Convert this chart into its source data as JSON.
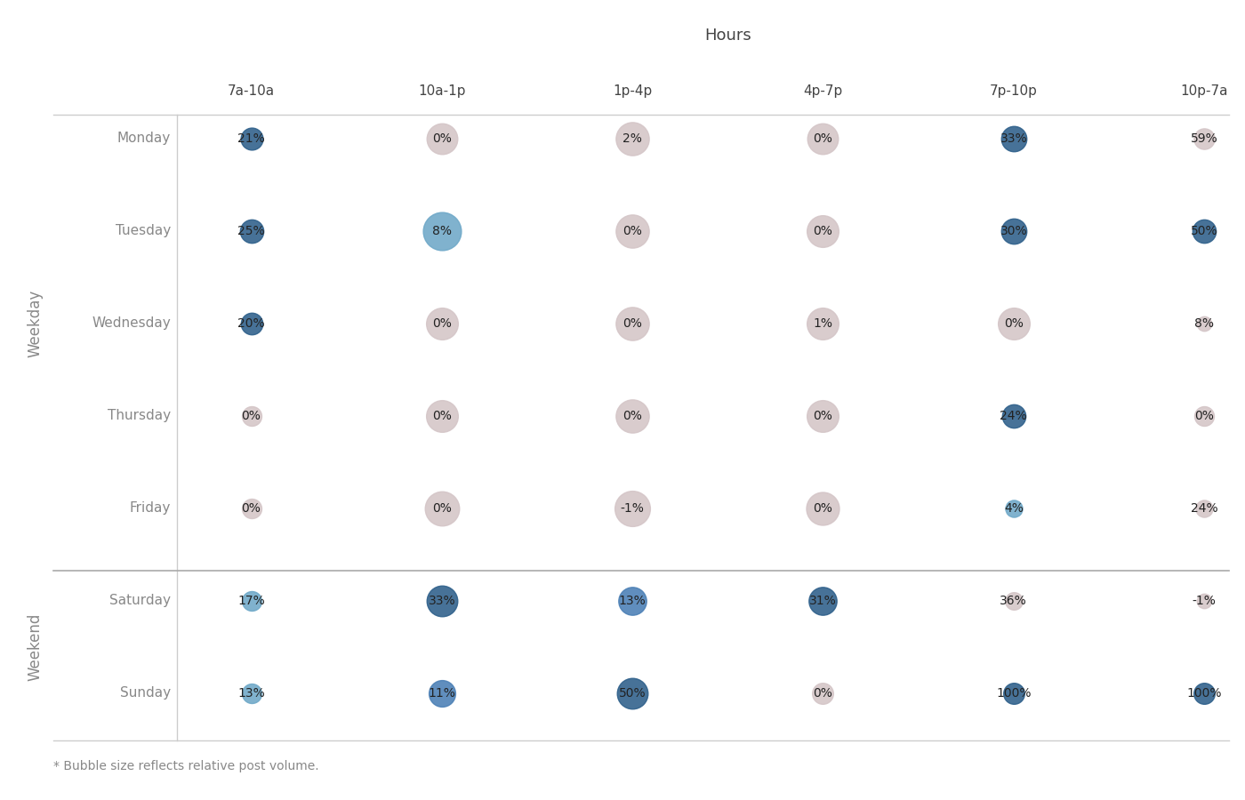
{
  "title": "Hours",
  "hours": [
    "7a-10a",
    "10a-1p",
    "1p-4p",
    "4p-7p",
    "7p-10p",
    "10p-7a"
  ],
  "days": [
    "Monday",
    "Tuesday",
    "Wednesday",
    "Thursday",
    "Friday",
    "Saturday",
    "Sunday"
  ],
  "weekday_label": "Weekday",
  "weekend_label": "Weekend",
  "footnote": "* Bubble size reflects relative post volume.",
  "values": [
    [
      21,
      0,
      2,
      0,
      33,
      59
    ],
    [
      25,
      8,
      0,
      0,
      30,
      50
    ],
    [
      20,
      0,
      0,
      1,
      0,
      8
    ],
    [
      0,
      0,
      0,
      0,
      24,
      0
    ],
    [
      0,
      0,
      -1,
      0,
      4,
      24
    ],
    [
      17,
      33,
      13,
      31,
      36,
      -1
    ],
    [
      13,
      11,
      50,
      0,
      100,
      100
    ]
  ],
  "bubble_sizes": [
    [
      320,
      620,
      720,
      620,
      420,
      280
    ],
    [
      360,
      950,
      720,
      660,
      420,
      360
    ],
    [
      310,
      660,
      720,
      660,
      660,
      140
    ],
    [
      250,
      660,
      720,
      660,
      360,
      250
    ],
    [
      250,
      770,
      820,
      710,
      190,
      190
    ],
    [
      250,
      620,
      510,
      510,
      200,
      140
    ],
    [
      250,
      460,
      620,
      290,
      290,
      290
    ]
  ],
  "colors": [
    [
      "#2d5f8a",
      "#d4c5c7",
      "#d4c5c7",
      "#d4c5c7",
      "#2d5f8a",
      "#d4c5c7"
    ],
    [
      "#2d5f8a",
      "#6ea8c8",
      "#d4c5c7",
      "#d4c5c7",
      "#2d5f8a",
      "#2d5f8a"
    ],
    [
      "#2d5f8a",
      "#d4c5c7",
      "#d4c5c7",
      "#d4c5c7",
      "#d4c5c7",
      "#d4c5c7"
    ],
    [
      "#d4c5c7",
      "#d4c5c7",
      "#d4c5c7",
      "#d4c5c7",
      "#2d5f8a",
      "#d4c5c7"
    ],
    [
      "#d4c5c7",
      "#d4c5c7",
      "#d4c5c7",
      "#d4c5c7",
      "#6ea8c8",
      "#d4c5c7"
    ],
    [
      "#6ea8c8",
      "#2d5f8a",
      "#4a7fb5",
      "#2d5f8a",
      "#d4c5c7",
      "#d4c5c7"
    ],
    [
      "#6ea8c8",
      "#4a7fb5",
      "#2d5f8a",
      "#d4c5c7",
      "#2d5f8a",
      "#2d5f8a"
    ]
  ],
  "background_color": "#ffffff",
  "text_color": "#888888",
  "line_color": "#cccccc",
  "sep_line_color": "#aaaaaa"
}
